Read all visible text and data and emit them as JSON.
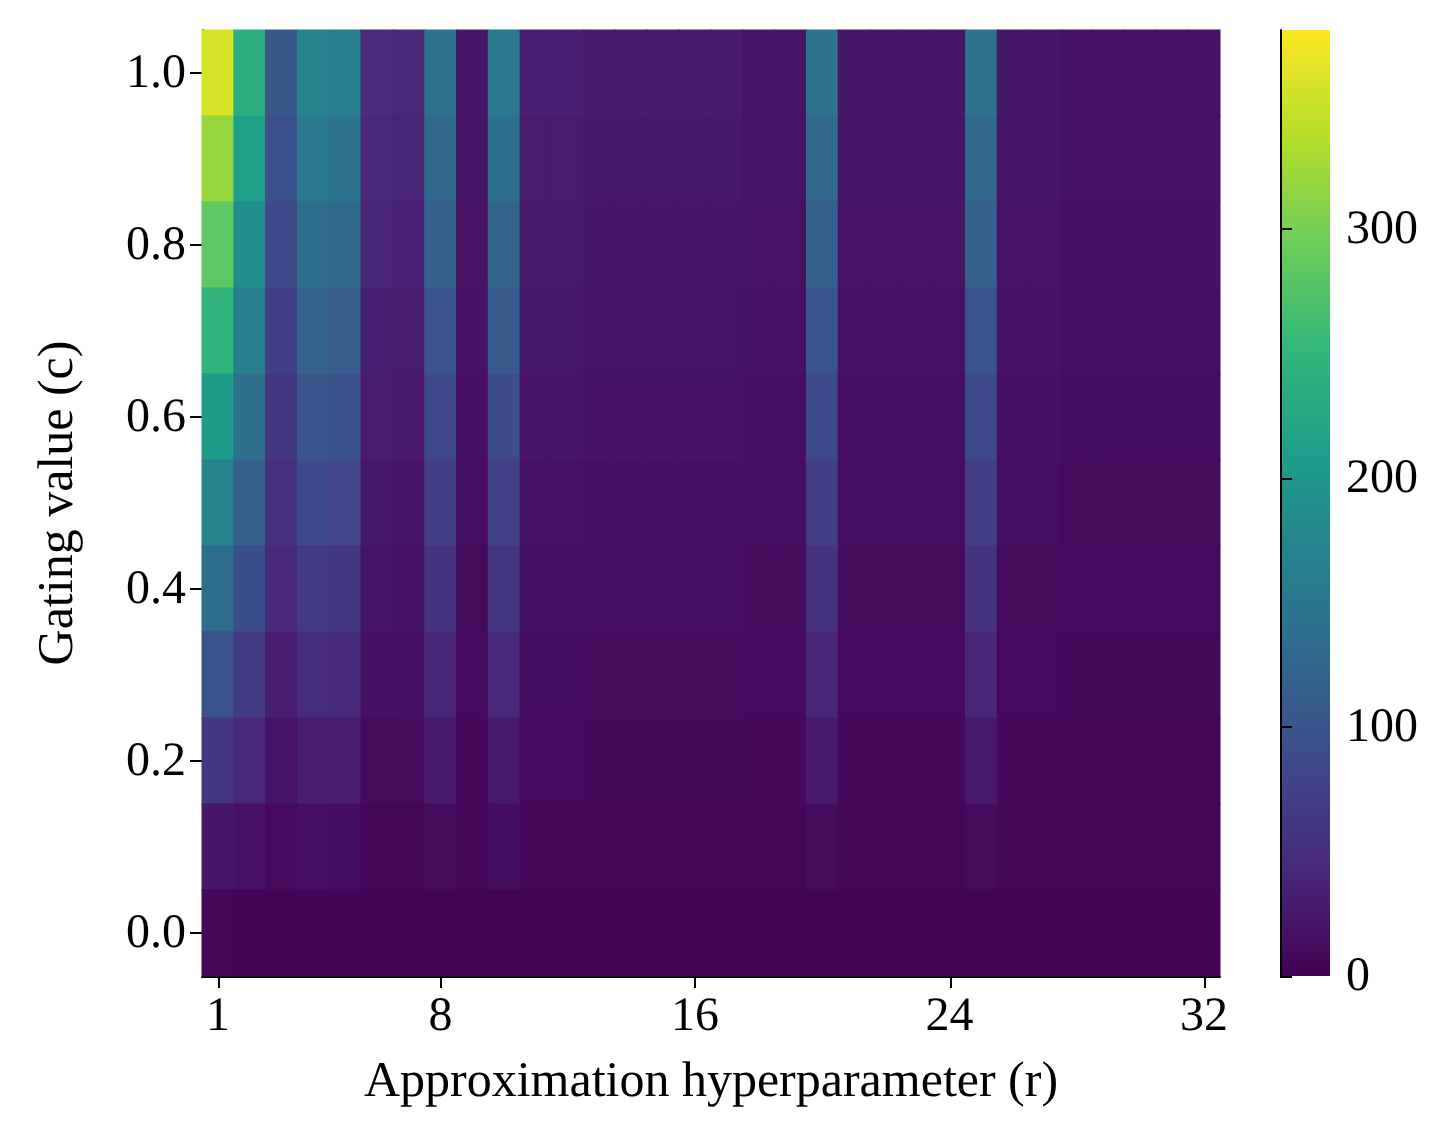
{
  "chart_data": {
    "type": "heatmap",
    "xlabel": "Approximation hyperparameter (r)",
    "ylabel": "Gating value (c)",
    "categories": [
      "1",
      null,
      null,
      null,
      null,
      null,
      null,
      "8",
      null,
      null,
      null,
      null,
      null,
      null,
      null,
      "16",
      null,
      null,
      null,
      null,
      null,
      null,
      null,
      "24",
      null,
      null,
      null,
      null,
      null,
      null,
      null,
      "32"
    ],
    "y_categories": [
      "1.0",
      null,
      "0.8",
      null,
      "0.6",
      null,
      "0.4",
      null,
      "0.2",
      null,
      "0.0"
    ],
    "clim": [
      0,
      380
    ],
    "cticks": [
      0,
      100,
      200,
      300
    ],
    "cells": [
      [
        357,
        238,
        105,
        171,
        162,
        48,
        43,
        143,
        24,
        152,
        34,
        34,
        29,
        29,
        29,
        29,
        29,
        24,
        24,
        143,
        24,
        24,
        24,
        24,
        143,
        24,
        24,
        19,
        19,
        19,
        19,
        19
      ],
      [
        320,
        213,
        94,
        154,
        145,
        43,
        39,
        128,
        22,
        137,
        31,
        31,
        26,
        26,
        26,
        26,
        26,
        22,
        22,
        128,
        22,
        22,
        22,
        22,
        128,
        22,
        22,
        18,
        18,
        18,
        18,
        18
      ],
      [
        283,
        189,
        84,
        136,
        129,
        39,
        35,
        114,
        20,
        121,
        28,
        28,
        24,
        24,
        24,
        24,
        24,
        20,
        20,
        114,
        20,
        20,
        20,
        20,
        114,
        20,
        20,
        16,
        16,
        16,
        16,
        16
      ],
      [
        246,
        164,
        73,
        119,
        112,
        34,
        31,
        99,
        18,
        106,
        25,
        25,
        21,
        21,
        21,
        21,
        21,
        18,
        18,
        99,
        18,
        18,
        18,
        18,
        99,
        18,
        18,
        15,
        15,
        15,
        15,
        15
      ],
      [
        209,
        140,
        63,
        101,
        96,
        30,
        27,
        85,
        16,
        90,
        22,
        22,
        19,
        19,
        19,
        19,
        19,
        16,
        16,
        85,
        16,
        16,
        16,
        16,
        85,
        16,
        16,
        13,
        13,
        13,
        13,
        13
      ],
      [
        172,
        115,
        52,
        84,
        79,
        25,
        23,
        70,
        14,
        75,
        19,
        19,
        16,
        16,
        16,
        16,
        16,
        14,
        14,
        70,
        14,
        14,
        14,
        14,
        70,
        14,
        14,
        12,
        12,
        12,
        12,
        12
      ],
      [
        135,
        91,
        42,
        66,
        63,
        21,
        19,
        56,
        12,
        59,
        16,
        16,
        14,
        14,
        14,
        14,
        14,
        12,
        12,
        56,
        12,
        12,
        12,
        12,
        56,
        12,
        12,
        10,
        10,
        10,
        10,
        10
      ],
      [
        98,
        66,
        31,
        49,
        46,
        16,
        15,
        41,
        10,
        44,
        13,
        13,
        11,
        11,
        11,
        11,
        11,
        10,
        10,
        41,
        10,
        10,
        10,
        10,
        41,
        10,
        10,
        9,
        9,
        9,
        9,
        9
      ],
      [
        61,
        42,
        21,
        31,
        30,
        12,
        11,
        27,
        8,
        28,
        10,
        10,
        9,
        9,
        9,
        9,
        9,
        8,
        8,
        27,
        8,
        8,
        8,
        8,
        27,
        8,
        8,
        7,
        7,
        7,
        7,
        7
      ],
      [
        24,
        17,
        10,
        14,
        13,
        7,
        7,
        12,
        6,
        13,
        7,
        7,
        6,
        6,
        6,
        6,
        6,
        6,
        6,
        12,
        6,
        6,
        6,
        6,
        12,
        6,
        6,
        6,
        6,
        6,
        6,
        6
      ],
      [
        8,
        5,
        4,
        5,
        5,
        3,
        3,
        4,
        3,
        4,
        3,
        3,
        3,
        3,
        3,
        3,
        3,
        3,
        3,
        4,
        3,
        3,
        3,
        3,
        4,
        3,
        3,
        3,
        3,
        3,
        3,
        3
      ]
    ]
  }
}
